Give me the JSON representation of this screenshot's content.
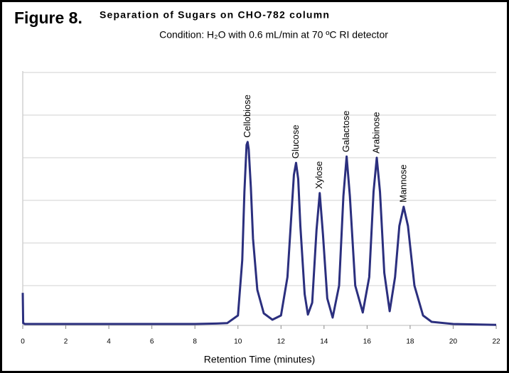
{
  "chart_data": {
    "type": "line",
    "figure_label": "Figure 8.",
    "title": "Separation of Sugars on CHO-782 column",
    "subtitle": "Condition: H₂O with 0.6 mL/min at 70 ºC RI detector",
    "x_label": "Retention Time (minutes)",
    "xlim": [
      0,
      22
    ],
    "xticks": [
      0,
      2,
      4,
      6,
      8,
      10,
      12,
      14,
      16,
      18,
      20,
      22
    ],
    "ylim": [
      0,
      6
    ],
    "yticks": [
      1,
      2,
      3,
      4,
      5,
      6
    ],
    "grid": true,
    "series": [
      {
        "color": "#2b2f7e",
        "x": [
          0,
          0.02,
          0.1,
          1,
          2,
          3,
          4,
          5,
          6,
          7,
          8,
          9,
          9.5,
          10,
          10.2,
          10.3,
          10.4,
          10.45,
          10.5,
          10.6,
          10.7,
          10.9,
          11.2,
          11.6,
          12.0,
          12.3,
          12.5,
          12.6,
          12.7,
          12.8,
          12.9,
          13.1,
          13.25,
          13.45,
          13.65,
          13.8,
          13.95,
          14.15,
          14.4,
          14.7,
          14.9,
          15.05,
          15.2,
          15.45,
          15.8,
          16.1,
          16.3,
          16.45,
          16.6,
          16.8,
          17.05,
          17.3,
          17.5,
          17.7,
          17.9,
          18.2,
          18.6,
          19,
          20,
          21,
          22
        ],
        "values": [
          0.83,
          0.12,
          0.1,
          0.1,
          0.1,
          0.1,
          0.1,
          0.1,
          0.1,
          0.1,
          0.1,
          0.11,
          0.12,
          0.3,
          1.6,
          3.2,
          4.3,
          4.37,
          4.2,
          3.3,
          2.1,
          0.9,
          0.35,
          0.2,
          0.3,
          1.2,
          2.8,
          3.6,
          3.88,
          3.5,
          2.4,
          0.8,
          0.32,
          0.6,
          2.3,
          3.17,
          2.2,
          0.7,
          0.25,
          1.0,
          3.1,
          4.03,
          3.1,
          1.0,
          0.37,
          1.2,
          3.2,
          4.0,
          3.2,
          1.3,
          0.4,
          1.2,
          2.4,
          2.85,
          2.4,
          1.0,
          0.3,
          0.15,
          0.1,
          0.09,
          0.08
        ]
      }
    ],
    "peaks": [
      {
        "label": "Cellobiose",
        "x": 10.45,
        "y": 4.37
      },
      {
        "label": "Glucose",
        "x": 12.7,
        "y": 3.88
      },
      {
        "label": "Xylose",
        "x": 13.8,
        "y": 3.17
      },
      {
        "label": "Galactose",
        "x": 15.05,
        "y": 4.03
      },
      {
        "label": "Arabinose",
        "x": 16.45,
        "y": 4.0
      },
      {
        "label": "Mannose",
        "x": 17.7,
        "y": 2.85
      }
    ]
  }
}
